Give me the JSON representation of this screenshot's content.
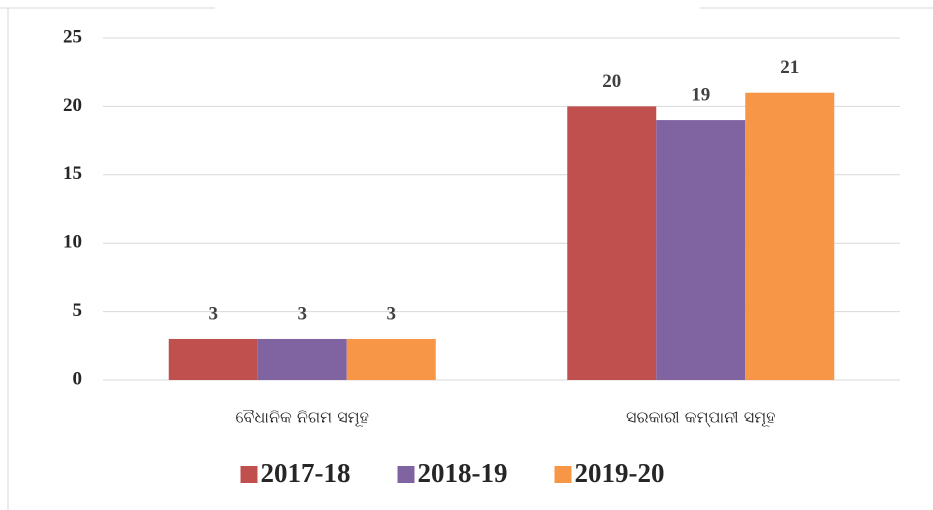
{
  "chart_data": {
    "type": "bar",
    "categories": [
      "ବୈଧାନିକ ନିଗମ ସମୂହ",
      "ସରକାରୀ କମ୍ପାନୀ ସମୂହ"
    ],
    "series": [
      {
        "name": "2017-18",
        "color": "#c0504d",
        "values": [
          3,
          20
        ]
      },
      {
        "name": "2018-19",
        "color": "#8064a2",
        "values": [
          3,
          19
        ]
      },
      {
        "name": "2019-20",
        "color": "#f79646",
        "values": [
          3,
          21
        ]
      }
    ],
    "ylim": [
      0,
      25
    ],
    "yticks": [
      0,
      5,
      10,
      15,
      20,
      25
    ],
    "grid": true,
    "legend": "bottom"
  }
}
